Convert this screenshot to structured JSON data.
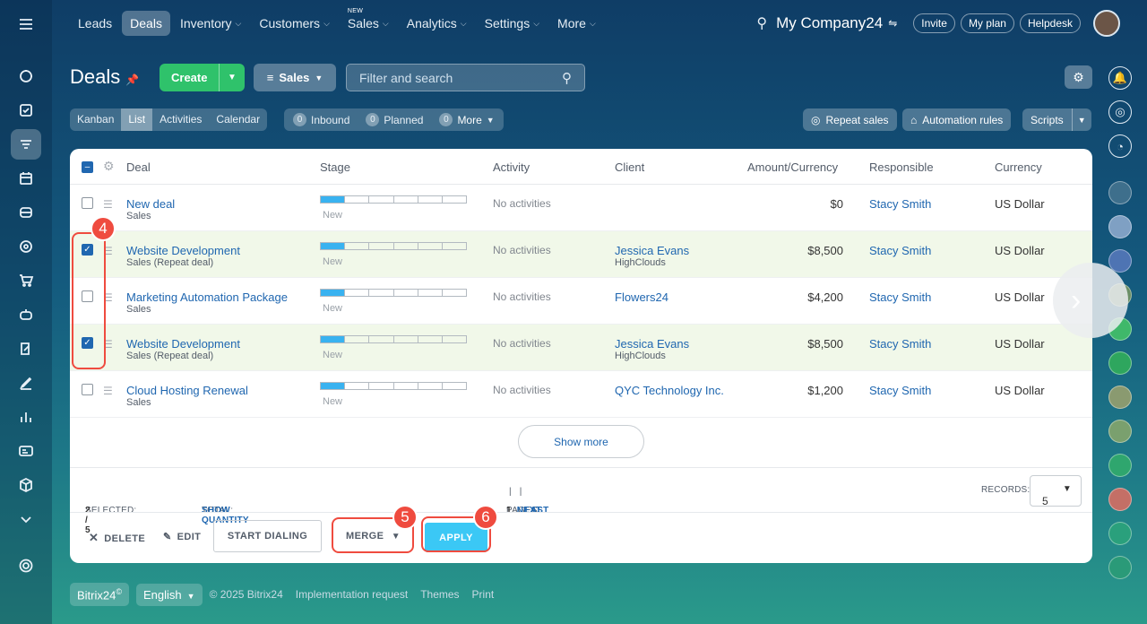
{
  "nav": {
    "items": [
      {
        "label": "Leads",
        "chevron": false,
        "new": ""
      },
      {
        "label": "Deals",
        "chevron": false,
        "new": ""
      },
      {
        "label": "Inventory",
        "chevron": true,
        "new": ""
      },
      {
        "label": "Customers",
        "chevron": true,
        "new": ""
      },
      {
        "label": "Sales",
        "chevron": true,
        "new": "NEW"
      },
      {
        "label": "Analytics",
        "chevron": true,
        "new": ""
      },
      {
        "label": "Settings",
        "chevron": true,
        "new": ""
      },
      {
        "label": "More",
        "chevron": true,
        "new": ""
      }
    ],
    "company": "My Company24",
    "invite": "Invite",
    "my_plan": "My plan",
    "helpdesk": "Helpdesk"
  },
  "header": {
    "title": "Deals",
    "create_label": "Create",
    "sales_filter": "Sales",
    "search_placeholder": "Filter and search"
  },
  "toolbar": {
    "views": [
      "Kanban",
      "List",
      "Activities",
      "Calendar"
    ],
    "active_view": "List",
    "counters": [
      {
        "count": "0",
        "label": "Inbound"
      },
      {
        "count": "0",
        "label": "Planned"
      },
      {
        "count": "0",
        "label": "More"
      }
    ],
    "repeat_sales": "Repeat sales",
    "automation_rules": "Automation rules",
    "scripts": "Scripts"
  },
  "table": {
    "columns": {
      "deal": "Deal",
      "stage": "Stage",
      "activity": "Activity",
      "client": "Client",
      "amount": "Amount/Currency",
      "responsible": "Responsible",
      "currency": "Currency"
    },
    "rows": [
      {
        "name": "New deal",
        "sub": "Sales",
        "stage": "New",
        "activity": "No activities",
        "client": "",
        "client_sub": "",
        "amount": "$0",
        "responsible": "Stacy Smith",
        "currency": "US Dollar",
        "checked": false
      },
      {
        "name": "Website Development",
        "sub": "Sales (Repeat deal)",
        "stage": "New",
        "activity": "No activities",
        "client": "Jessica Evans",
        "client_sub": "HighClouds",
        "amount": "$8,500",
        "responsible": "Stacy Smith",
        "currency": "US Dollar",
        "checked": true
      },
      {
        "name": "Marketing Automation Package",
        "sub": "Sales",
        "stage": "New",
        "activity": "No activities",
        "client": "Flowers24",
        "client_sub": "",
        "amount": "$4,200",
        "responsible": "Stacy Smith",
        "currency": "US Dollar",
        "checked": false
      },
      {
        "name": "Website Development",
        "sub": "Sales (Repeat deal)",
        "stage": "New",
        "activity": "No activities",
        "client": "Jessica Evans",
        "client_sub": "HighClouds",
        "amount": "$8,500",
        "responsible": "Stacy Smith",
        "currency": "US Dollar",
        "checked": true
      },
      {
        "name": "Cloud Hosting Renewal",
        "sub": "Sales",
        "stage": "New",
        "activity": "No activities",
        "client": "QYC Technology Inc.",
        "client_sub": "",
        "amount": "$1,200",
        "responsible": "Stacy Smith",
        "currency": "US Dollar",
        "checked": false
      }
    ],
    "show_more": "Show more"
  },
  "footer": {
    "selected_label": "SELECTED:",
    "selected_value": "2 / 5",
    "total_label": "TOTAL:",
    "total_link": "SHOW QUANTITY",
    "pages_label": "PAGES:",
    "page": "1",
    "next": "NEXT",
    "last": "LAST",
    "records_label": "RECORDS:",
    "records_value": "5"
  },
  "actions": {
    "delete": "DELETE",
    "edit": "EDIT",
    "start_dialing": "START DIALING",
    "merge": "MERGE",
    "apply": "APPLY"
  },
  "annotations": {
    "badge_4": "4",
    "badge_5": "5",
    "badge_6": "6",
    "color": "#ef4b3f"
  },
  "bottom": {
    "brand": "Bitrix24",
    "language": "English",
    "copyright": "© 2025 Bitrix24",
    "implementation": "Implementation request",
    "themes": "Themes",
    "print": "Print"
  }
}
